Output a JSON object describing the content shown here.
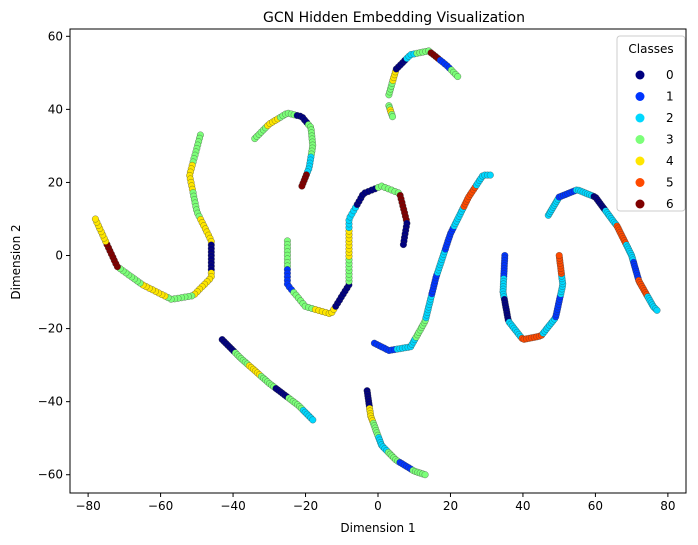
{
  "chart_data": {
    "type": "scatter",
    "title": "GCN Hidden Embedding Visualization",
    "xlabel": "Dimension 1",
    "ylabel": "Dimension 2",
    "xlim": [
      -85,
      85
    ],
    "ylim": [
      -65,
      62
    ],
    "xticks": [
      -80,
      -60,
      -40,
      -20,
      0,
      20,
      40,
      60,
      80
    ],
    "yticks": [
      -60,
      -40,
      -20,
      0,
      20,
      40,
      60
    ],
    "grid": false,
    "legend": {
      "title": "Classes",
      "placement": "top-right",
      "entries": [
        {
          "label": "0",
          "color": "#00007f"
        },
        {
          "label": "1",
          "color": "#0035ff"
        },
        {
          "label": "2",
          "color": "#00d8ff"
        },
        {
          "label": "3",
          "color": "#7cff79"
        },
        {
          "label": "4",
          "color": "#ffe600"
        },
        {
          "label": "5",
          "color": "#ff4a00"
        },
        {
          "label": "6",
          "color": "#7f0000"
        }
      ]
    },
    "curves": [
      {
        "name": "top-arc",
        "path": [
          [
            3,
            44
          ],
          [
            5,
            51
          ],
          [
            9,
            55
          ],
          [
            14,
            56
          ],
          [
            19,
            52
          ],
          [
            22,
            49
          ]
        ],
        "classes": [
          3,
          4,
          0,
          2,
          3,
          6,
          1,
          3
        ],
        "n": 36
      },
      {
        "name": "top-hook",
        "path": [
          [
            3,
            41
          ],
          [
            3.5,
            39.5
          ],
          [
            4,
            38
          ]
        ],
        "classes": [
          3,
          4,
          3
        ],
        "n": 6
      },
      {
        "name": "upper-left-arc",
        "path": [
          [
            -34,
            32
          ],
          [
            -30,
            36
          ],
          [
            -25,
            39
          ],
          [
            -21,
            38
          ],
          [
            -18.5,
            35
          ],
          [
            -18,
            30
          ],
          [
            -19,
            24
          ],
          [
            -21,
            19
          ]
        ],
        "classes": [
          3,
          4,
          3,
          0,
          3,
          3,
          2,
          6
        ],
        "n": 44
      },
      {
        "name": "left-s",
        "path": [
          [
            -49,
            33
          ],
          [
            -52,
            22
          ],
          [
            -50,
            12
          ],
          [
            -46,
            4
          ],
          [
            -46,
            -6
          ],
          [
            -51,
            -11
          ],
          [
            -57,
            -12
          ],
          [
            -65,
            -8
          ],
          [
            -72,
            -3
          ],
          [
            -78,
            10
          ]
        ],
        "classes": [
          3,
          4,
          3,
          4,
          0,
          4,
          3,
          4,
          3,
          6,
          4
        ],
        "n": 90
      },
      {
        "name": "mid-left-s",
        "path": [
          [
            -25,
            4
          ],
          [
            -25,
            -8
          ],
          [
            -20,
            -14
          ],
          [
            -13,
            -16
          ],
          [
            -8,
            -8
          ],
          [
            -8,
            10
          ],
          [
            -4,
            17
          ],
          [
            1,
            19
          ],
          [
            6,
            17
          ],
          [
            8,
            9
          ],
          [
            7,
            3
          ]
        ],
        "classes": [
          3,
          1,
          3,
          4,
          0,
          3,
          4,
          2,
          0,
          3,
          6,
          0
        ],
        "n": 90
      },
      {
        "name": "lower-left-diag",
        "path": [
          [
            -43,
            -23
          ],
          [
            -38,
            -28
          ],
          [
            -30,
            -35
          ],
          [
            -22,
            -41
          ],
          [
            -18,
            -45
          ]
        ],
        "classes": [
          0,
          3,
          4,
          3,
          0,
          3,
          2
        ],
        "n": 46
      },
      {
        "name": "center-s",
        "path": [
          [
            -1,
            -24
          ],
          [
            3,
            -26
          ],
          [
            9,
            -25
          ],
          [
            13,
            -18
          ],
          [
            16,
            -6
          ],
          [
            20,
            6
          ],
          [
            25,
            16
          ],
          [
            29,
            22
          ],
          [
            31,
            22
          ]
        ],
        "classes": [
          1,
          2,
          3,
          2,
          1,
          2,
          1,
          2,
          5,
          2
        ],
        "n": 86
      },
      {
        "name": "bottom-curve",
        "path": [
          [
            -3,
            -37
          ],
          [
            -2,
            -44
          ],
          [
            1,
            -52
          ],
          [
            5,
            -56
          ],
          [
            10,
            -59
          ],
          [
            13,
            -60
          ]
        ],
        "classes": [
          0,
          4,
          3,
          2,
          3,
          1,
          3
        ],
        "n": 44
      },
      {
        "name": "right-u",
        "path": [
          [
            35,
            0
          ],
          [
            34.5,
            -10
          ],
          [
            36,
            -18
          ],
          [
            40,
            -23
          ],
          [
            45,
            -22
          ],
          [
            49,
            -17
          ],
          [
            51,
            -8
          ],
          [
            50,
            0
          ]
        ],
        "classes": [
          1,
          2,
          0,
          2,
          5,
          2,
          1,
          2,
          5
        ],
        "n": 76
      },
      {
        "name": "right-arc",
        "path": [
          [
            47,
            11
          ],
          [
            50,
            16
          ],
          [
            55,
            18
          ],
          [
            60,
            16
          ],
          [
            66,
            8
          ],
          [
            70,
            0
          ],
          [
            72,
            -7
          ],
          [
            76,
            -14
          ],
          [
            77,
            -15
          ]
        ],
        "classes": [
          2,
          1,
          2,
          0,
          2,
          5,
          2,
          1,
          5,
          2
        ],
        "n": 82
      }
    ]
  }
}
